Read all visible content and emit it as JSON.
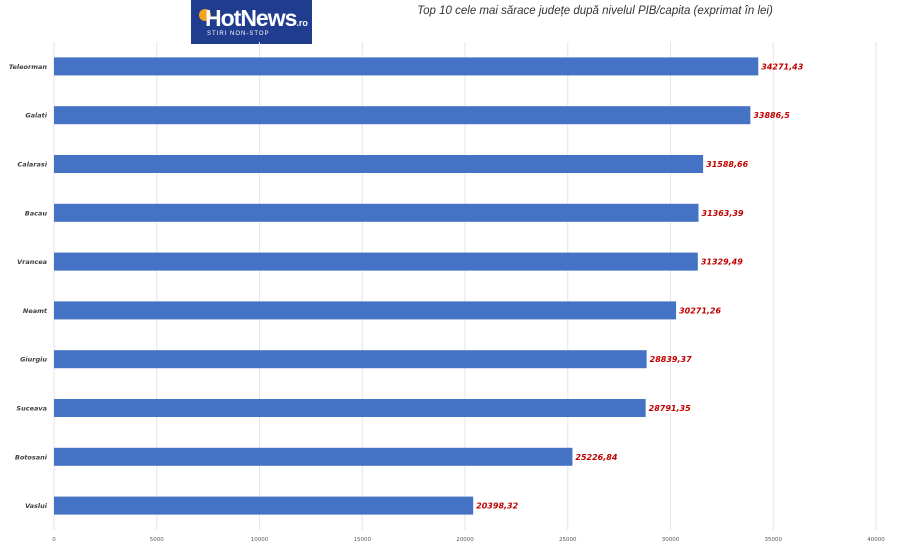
{
  "header": {
    "logo_text": "HotNews",
    "logo_suffix": ".ro",
    "logo_tagline": "STIRI NON-STOP",
    "title": "Top 10 cele mai sărace județe după nivelul PIB/capita (exprimat în lei)"
  },
  "colors": {
    "bar": "#4472c4",
    "value_label": "#c00000",
    "grid": "#e6e6e6",
    "logo_bg": "#1f3c8f"
  },
  "chart_data": {
    "type": "bar",
    "orientation": "horizontal",
    "title": "Top 10 cele mai sărace județe după nivelul PIB/capita (exprimat în lei)",
    "categories": [
      "Teleorman",
      "Galati",
      "Calarasi",
      "Bacau",
      "Vrancea",
      "Neamt",
      "Giurgiu",
      "Suceava",
      "Botosani",
      "Vaslui"
    ],
    "values": [
      34271.43,
      33886.5,
      31588.66,
      31363.39,
      31329.49,
      30271.26,
      28839.37,
      28791.35,
      25226.84,
      20398.32
    ],
    "value_labels": [
      "34271,43",
      "33886,5",
      "31588,66",
      "31363,39",
      "31329,49",
      "30271,26",
      "28839,37",
      "28791,35",
      "25226,84",
      "20398,32"
    ],
    "xlim": [
      0,
      40000
    ],
    "x_ticks": [
      0,
      5000,
      10000,
      15000,
      20000,
      25000,
      30000,
      35000,
      40000
    ],
    "x_tick_labels": [
      "0",
      "5000",
      "10000",
      "15000",
      "20000",
      "25000",
      "30000",
      "35000",
      "40000"
    ],
    "grid": true,
    "legend": "none"
  }
}
